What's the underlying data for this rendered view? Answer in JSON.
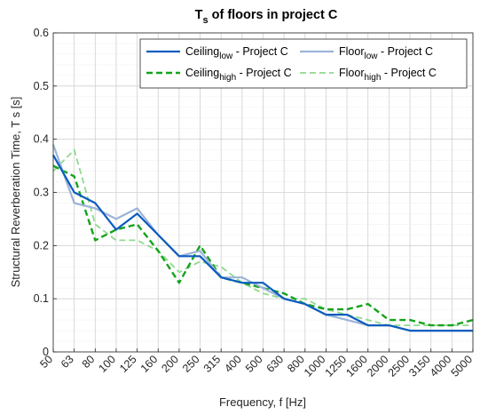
{
  "chart_data": {
    "type": "line",
    "title": {
      "main": "T",
      "subscript": "s",
      "rest": " of floors in project C"
    },
    "xlabel": "Frequency, f [Hz]",
    "ylabel": "Structural Reverberation Time, T  s [s]",
    "categories": [
      "50",
      "63",
      "80",
      "100",
      "125",
      "160",
      "200",
      "250",
      "315",
      "400",
      "500",
      "630",
      "800",
      "1000",
      "1250",
      "1600",
      "2000",
      "2500",
      "3150",
      "4000",
      "5000"
    ],
    "ylim": [
      0,
      0.6
    ],
    "yticks": [
      "0",
      "0.1",
      "0.2",
      "0.3",
      "0.4",
      "0.5",
      "0.6"
    ],
    "grid": true,
    "minor_grid": true,
    "legend_position": "top-right",
    "series": [
      {
        "key": "ceiling_low",
        "label_main": "Ceiling",
        "label_sub": "low",
        "label_rest": " - Project C",
        "color": "#0b5cbf",
        "style": "solid",
        "values": [
          0.37,
          0.3,
          0.28,
          0.23,
          0.26,
          0.22,
          0.18,
          0.18,
          0.14,
          0.13,
          0.13,
          0.1,
          0.09,
          0.07,
          0.07,
          0.05,
          0.05,
          0.04,
          0.04,
          0.04,
          0.04
        ]
      },
      {
        "key": "floor_low",
        "label_main": "Floor",
        "label_sub": "low",
        "label_rest": " - Project C",
        "color": "#9cb4d8",
        "style": "solid",
        "values": [
          0.39,
          0.28,
          0.27,
          0.25,
          0.27,
          0.22,
          0.18,
          0.19,
          0.14,
          0.14,
          0.12,
          0.1,
          0.09,
          0.07,
          0.06,
          0.05,
          0.05,
          0.04,
          0.04,
          0.04,
          0.04
        ]
      },
      {
        "key": "ceiling_high",
        "label_main": "Ceiling",
        "label_sub": "high",
        "label_rest": " - Project C",
        "color": "#15a31d",
        "style": "dashed-bold",
        "values": [
          0.35,
          0.33,
          0.21,
          0.23,
          0.24,
          0.19,
          0.13,
          0.2,
          0.14,
          0.13,
          0.12,
          0.11,
          0.09,
          0.08,
          0.08,
          0.09,
          0.06,
          0.06,
          0.05,
          0.05,
          0.06
        ]
      },
      {
        "key": "floor_high",
        "label_main": "Floor",
        "label_sub": "high",
        "label_rest": " - Project C",
        "color": "#8fd98e",
        "style": "dashed",
        "values": [
          0.34,
          0.38,
          0.24,
          0.21,
          0.21,
          0.19,
          0.15,
          0.17,
          0.16,
          0.13,
          0.11,
          0.1,
          0.1,
          0.08,
          0.07,
          0.06,
          0.05,
          0.05,
          0.05,
          0.05,
          0.05
        ]
      }
    ]
  }
}
